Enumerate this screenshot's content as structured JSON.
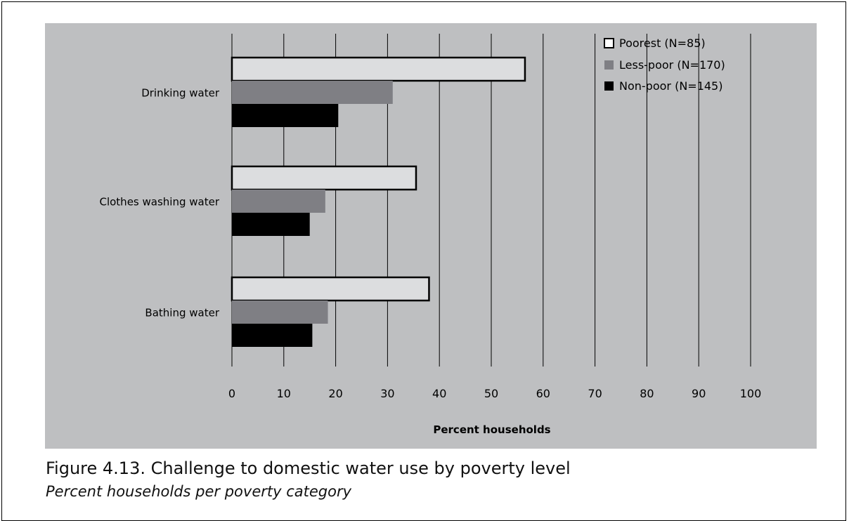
{
  "colors": {
    "panel": "#bebfc1",
    "poorest": "#dcdddf",
    "less_poor": "#7f7f84",
    "non_poor": "#000000",
    "grid": "#000000"
  },
  "caption": {
    "title": "Figure 4.13. Challenge to domestic water use by poverty level",
    "subtitle": "Percent households per poverty category"
  },
  "chart_data": {
    "type": "bar",
    "orientation": "horizontal",
    "categories": [
      "Drinking water",
      "Clothes washing water",
      "Bathing water"
    ],
    "series": [
      {
        "name": "Poorest (N=85)",
        "values": [
          56.5,
          35.5,
          38
        ]
      },
      {
        "name": "Less-poor (N=170)",
        "values": [
          31,
          18,
          18.5
        ]
      },
      {
        "name": "Non-poor (N=145)",
        "values": [
          20.5,
          15,
          15.5
        ]
      }
    ],
    "xlabel": "Percent households",
    "ylabel": "",
    "xlim": [
      0,
      100
    ],
    "xticks": [
      "0",
      "10",
      "20",
      "30",
      "40",
      "50",
      "60",
      "70",
      "80",
      "90",
      "100"
    ],
    "grid": "vertical",
    "legend": "top-right"
  }
}
